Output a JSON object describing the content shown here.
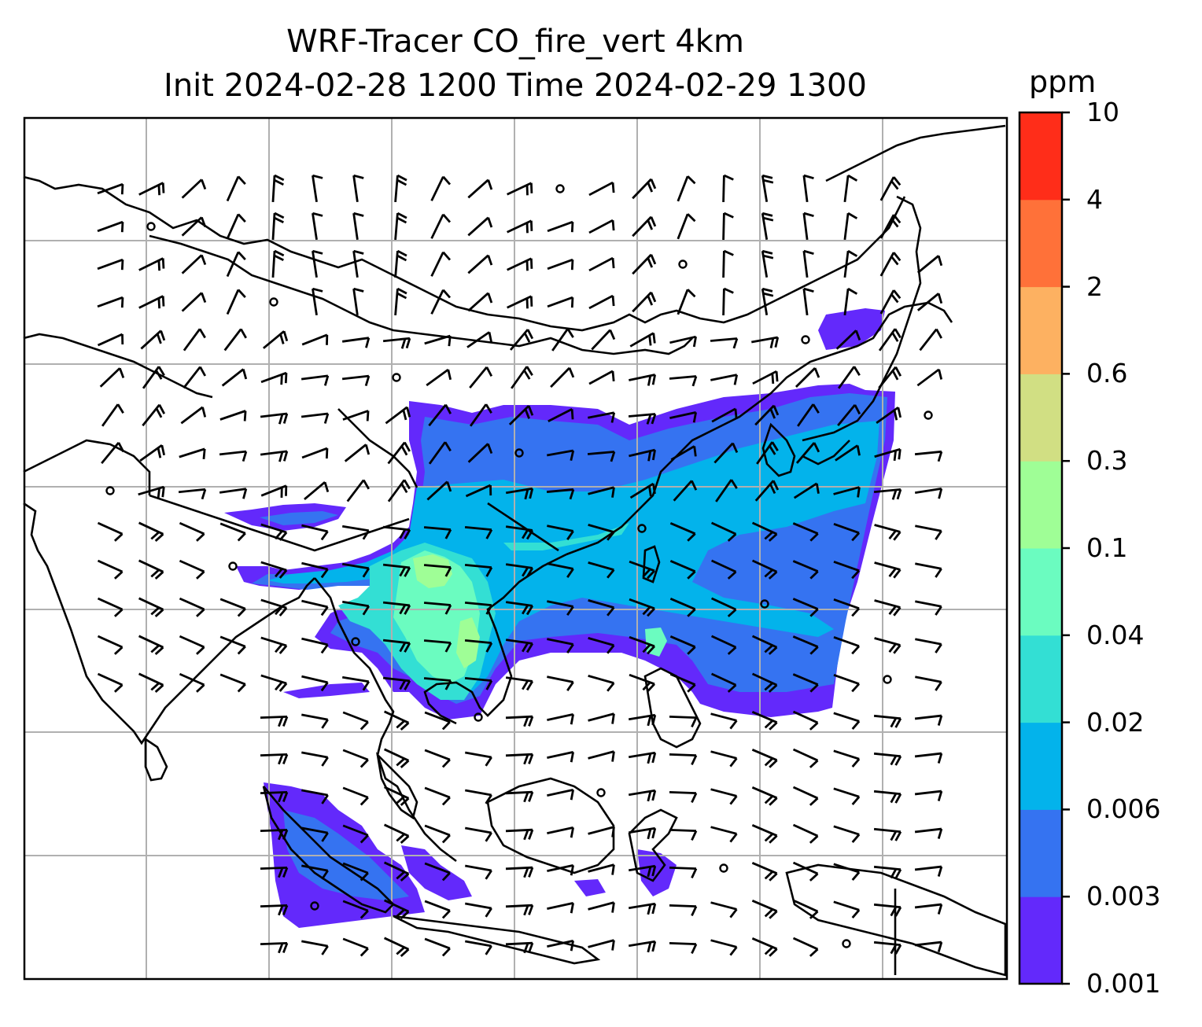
{
  "title": {
    "line1": "WRF-Tracer CO_fire_vert 4km",
    "line2": "Init 2024-02-28 1200 Time 2024-02-29 1300"
  },
  "colorbar": {
    "unit": "ppm",
    "levels": [
      "0.001",
      "0.003",
      "0.006",
      "0.02",
      "0.04",
      "0.1",
      "0.3",
      "0.6",
      "2",
      "4",
      "10"
    ],
    "colors": [
      "#6329fb",
      "#3573f1",
      "#03b3eb",
      "#33dfd4",
      "#6bfcc0",
      "#9ffe96",
      "#d1df83",
      "#fdb161",
      "#ff7139",
      "#ff2d19"
    ]
  },
  "map": {
    "field_colors": {
      "level1": "#6329fb",
      "level2": "#3573f1",
      "level3": "#03b3eb",
      "level4": "#33dfd4",
      "level5": "#6bfcc0",
      "level6": "#9ffe96"
    },
    "gridline_color": "#b0b0b0",
    "coastline_color": "#000000",
    "wind_barb_color": "#000000"
  }
}
